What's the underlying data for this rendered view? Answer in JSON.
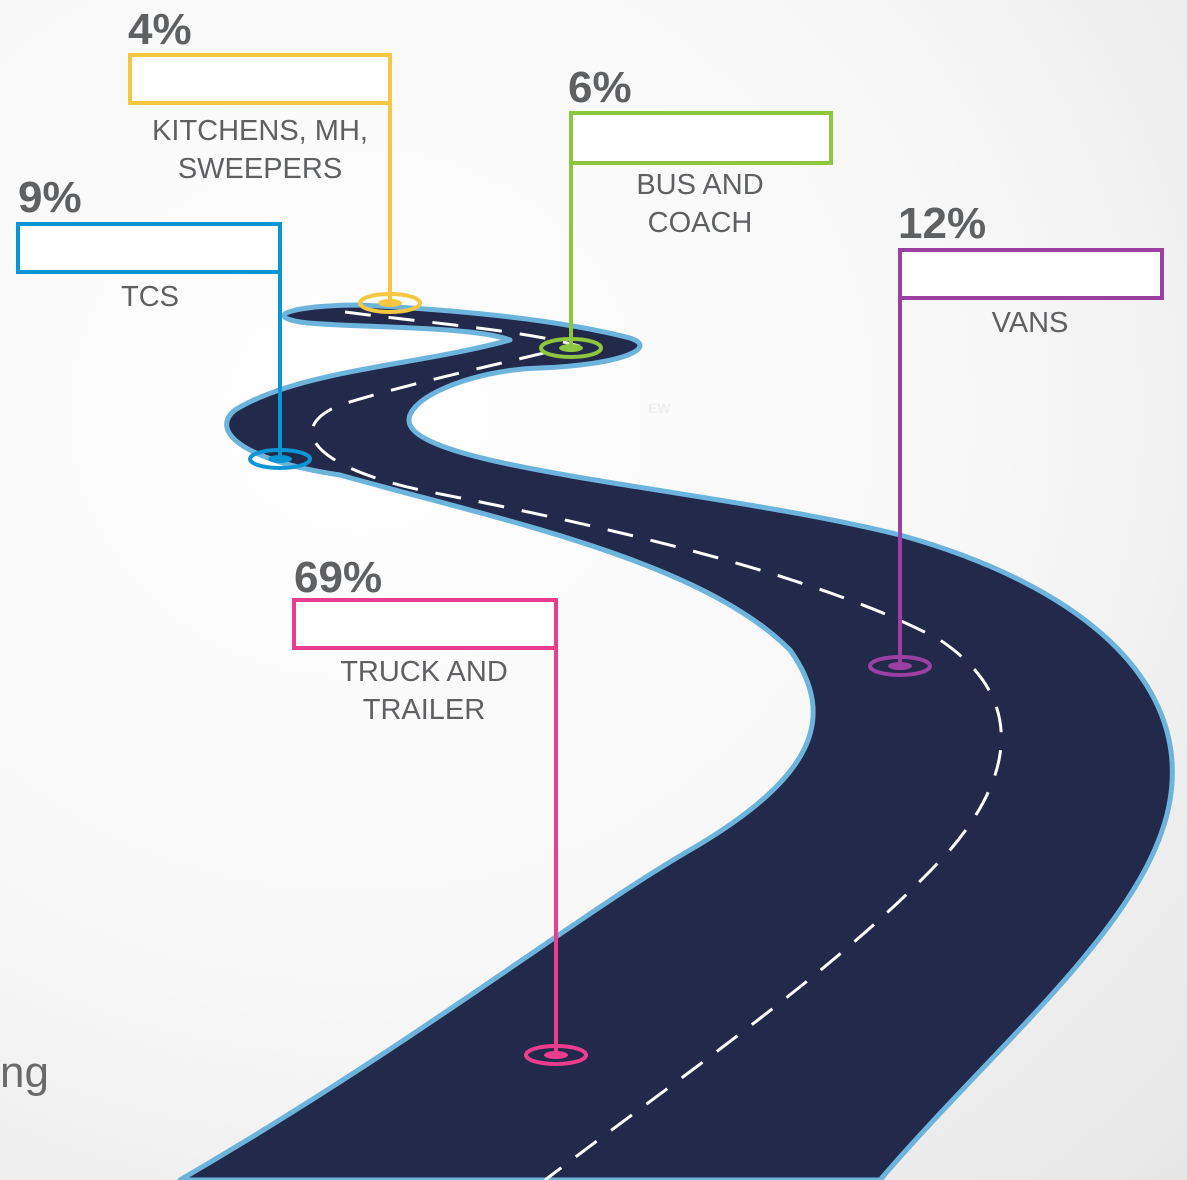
{
  "markers": [
    {
      "id": "kitchens",
      "percent": "4%",
      "label": "KITCHENS, MH,\nSWEEPERS",
      "color": "#f5c742"
    },
    {
      "id": "bus",
      "percent": "6%",
      "label": "BUS AND\nCOACH",
      "color": "#8dc63f"
    },
    {
      "id": "tcs",
      "percent": "9%",
      "label": "TCS",
      "color": "#0a96d4"
    },
    {
      "id": "vans",
      "percent": "12%",
      "label": "VANS",
      "color": "#9b3fa0"
    },
    {
      "id": "truck",
      "percent": "69%",
      "label": "TRUCK AND\nTRAILER",
      "color": "#ec3c8f"
    }
  ],
  "partial_text": "ng",
  "watermark": "EW",
  "colors": {
    "road": "#23294a",
    "road_edge": "#6cb4dc",
    "dash": "#ffffff",
    "text": "#5f6062"
  }
}
